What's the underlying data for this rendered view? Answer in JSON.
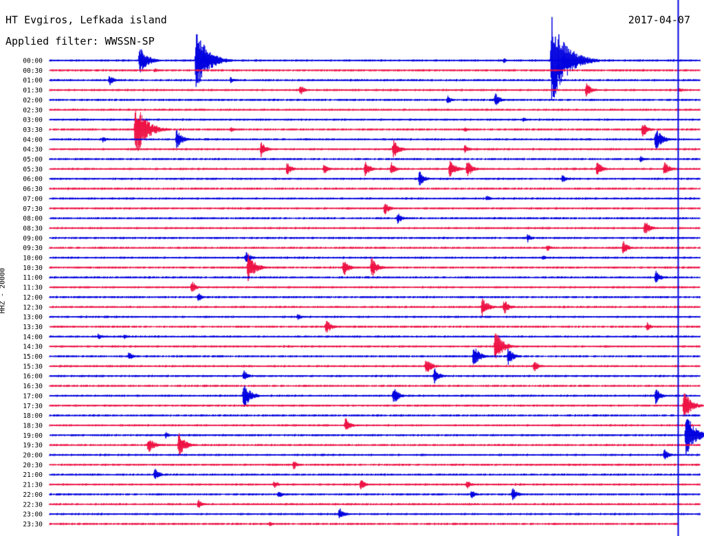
{
  "header": {
    "station": "HT Evgiros, Lefkada island",
    "filter": "Applied filter: WWSSN-SP",
    "date": "2017-04-07",
    "channel": "HHZ - 20000"
  },
  "colors": {
    "blue_trace": "#0000e0",
    "red_trace": "#ee1144",
    "current_time_marker": "#0000dd",
    "background": "#ffffff"
  },
  "chart_data": {
    "type": "line",
    "title": "HT Evgiros, Lefkada island",
    "subtitle": "Applied filter: WWSSN-SP",
    "date": "2017-04-07",
    "ylabel": "HHZ - 20000",
    "xlabel": "",
    "row_minutes": 30,
    "x_range_minutes": [
      0,
      30
    ],
    "row_labels": [
      "00:00",
      "00:30",
      "01:00",
      "01:30",
      "02:00",
      "02:30",
      "03:00",
      "03:30",
      "04:00",
      "04:30",
      "05:00",
      "05:30",
      "06:00",
      "06:30",
      "07:00",
      "07:30",
      "08:00",
      "08:30",
      "09:00",
      "09:30",
      "10:00",
      "10:30",
      "11:00",
      "11:30",
      "12:00",
      "12:30",
      "13:00",
      "13:30",
      "14:00",
      "14:30",
      "15:00",
      "15:30",
      "16:00",
      "16:30",
      "17:00",
      "17:30",
      "18:00",
      "18:30",
      "19:00",
      "19:30",
      "20:00",
      "20:30",
      "21:00",
      "21:30",
      "22:00",
      "22:30",
      "23:00",
      "23:30"
    ],
    "trace_colors": [
      "blue",
      "red"
    ],
    "current_time_minute": 29.0,
    "events": [
      {
        "row": 0,
        "minute": 4.1,
        "amplitude": 30
      },
      {
        "row": 0,
        "minute": 6.7,
        "amplitude": 55
      },
      {
        "row": 0,
        "minute": 23.1,
        "amplitude": 75
      },
      {
        "row": 0,
        "minute": 23.6,
        "amplitude": 12
      },
      {
        "row": 0,
        "minute": 20.9,
        "amplitude": 6
      },
      {
        "row": 1,
        "minute": 4.8,
        "amplitude": 6
      },
      {
        "row": 2,
        "minute": 2.7,
        "amplitude": 12
      },
      {
        "row": 2,
        "minute": 8.3,
        "amplitude": 8
      },
      {
        "row": 3,
        "minute": 11.5,
        "amplitude": 12
      },
      {
        "row": 3,
        "minute": 24.7,
        "amplitude": 16
      },
      {
        "row": 3,
        "minute": 29.0,
        "amplitude": 6
      },
      {
        "row": 4,
        "minute": 18.3,
        "amplitude": 10
      },
      {
        "row": 4,
        "minute": 20.5,
        "amplitude": 14
      },
      {
        "row": 6,
        "minute": 21.8,
        "amplitude": 6
      },
      {
        "row": 7,
        "minute": 3.9,
        "amplitude": 50
      },
      {
        "row": 7,
        "minute": 8.3,
        "amplitude": 7
      },
      {
        "row": 7,
        "minute": 19.1,
        "amplitude": 6
      },
      {
        "row": 7,
        "minute": 27.3,
        "amplitude": 16
      },
      {
        "row": 8,
        "minute": 2.4,
        "amplitude": 8
      },
      {
        "row": 8,
        "minute": 5.8,
        "amplitude": 20
      },
      {
        "row": 8,
        "minute": 27.9,
        "amplitude": 24
      },
      {
        "row": 9,
        "minute": 9.7,
        "amplitude": 16
      },
      {
        "row": 9,
        "minute": 15.8,
        "amplitude": 20
      },
      {
        "row": 9,
        "minute": 19.1,
        "amplitude": 10
      },
      {
        "row": 10,
        "minute": 27.2,
        "amplitude": 8
      },
      {
        "row": 11,
        "minute": 10.9,
        "amplitude": 14
      },
      {
        "row": 11,
        "minute": 12.6,
        "amplitude": 12
      },
      {
        "row": 11,
        "minute": 14.5,
        "amplitude": 16
      },
      {
        "row": 11,
        "minute": 15.7,
        "amplitude": 14
      },
      {
        "row": 11,
        "minute": 18.4,
        "amplitude": 20
      },
      {
        "row": 11,
        "minute": 19.2,
        "amplitude": 18
      },
      {
        "row": 11,
        "minute": 25.2,
        "amplitude": 16
      },
      {
        "row": 11,
        "minute": 28.3,
        "amplitude": 16
      },
      {
        "row": 12,
        "minute": 17.0,
        "amplitude": 16
      },
      {
        "row": 12,
        "minute": 23.6,
        "amplitude": 10
      },
      {
        "row": 14,
        "minute": 20.1,
        "amplitude": 8
      },
      {
        "row": 15,
        "minute": 15.4,
        "amplitude": 14
      },
      {
        "row": 16,
        "minute": 16.0,
        "amplitude": 12
      },
      {
        "row": 17,
        "minute": 27.4,
        "amplitude": 16
      },
      {
        "row": 18,
        "minute": 22.0,
        "amplitude": 10
      },
      {
        "row": 19,
        "minute": 26.4,
        "amplitude": 16
      },
      {
        "row": 19,
        "minute": 22.9,
        "amplitude": 8
      },
      {
        "row": 20,
        "minute": 9.0,
        "amplitude": 14
      },
      {
        "row": 20,
        "minute": 22.7,
        "amplitude": 6
      },
      {
        "row": 21,
        "minute": 9.1,
        "amplitude": 28
      },
      {
        "row": 21,
        "minute": 13.5,
        "amplitude": 18
      },
      {
        "row": 21,
        "minute": 14.8,
        "amplitude": 20
      },
      {
        "row": 22,
        "minute": 27.9,
        "amplitude": 14
      },
      {
        "row": 23,
        "minute": 6.5,
        "amplitude": 14
      },
      {
        "row": 24,
        "minute": 6.8,
        "amplitude": 10
      },
      {
        "row": 25,
        "minute": 19.9,
        "amplitude": 20
      },
      {
        "row": 25,
        "minute": 20.9,
        "amplitude": 16
      },
      {
        "row": 26,
        "minute": 11.4,
        "amplitude": 8
      },
      {
        "row": 27,
        "minute": 12.7,
        "amplitude": 16
      },
      {
        "row": 27,
        "minute": 27.5,
        "amplitude": 10
      },
      {
        "row": 28,
        "minute": 2.2,
        "amplitude": 8
      },
      {
        "row": 28,
        "minute": 3.4,
        "amplitude": 6
      },
      {
        "row": 29,
        "minute": 20.5,
        "amplitude": 30
      },
      {
        "row": 30,
        "minute": 3.6,
        "amplitude": 10
      },
      {
        "row": 30,
        "minute": 19.5,
        "amplitude": 22
      },
      {
        "row": 30,
        "minute": 21.1,
        "amplitude": 18
      },
      {
        "row": 31,
        "minute": 17.3,
        "amplitude": 18
      },
      {
        "row": 31,
        "minute": 22.3,
        "amplitude": 12
      },
      {
        "row": 32,
        "minute": 8.9,
        "amplitude": 12
      },
      {
        "row": 32,
        "minute": 17.7,
        "amplitude": 16
      },
      {
        "row": 34,
        "minute": 8.9,
        "amplitude": 26
      },
      {
        "row": 34,
        "minute": 15.8,
        "amplitude": 18
      },
      {
        "row": 34,
        "minute": 27.9,
        "amplitude": 16
      },
      {
        "row": 35,
        "minute": 29.2,
        "amplitude": 30
      },
      {
        "row": 37,
        "minute": 13.6,
        "amplitude": 16
      },
      {
        "row": 38,
        "minute": 5.3,
        "amplitude": 8
      },
      {
        "row": 38,
        "minute": 29.3,
        "amplitude": 40
      },
      {
        "row": 39,
        "minute": 4.5,
        "amplitude": 18
      },
      {
        "row": 39,
        "minute": 5.9,
        "amplitude": 24
      },
      {
        "row": 40,
        "minute": 28.3,
        "amplitude": 12
      },
      {
        "row": 41,
        "minute": 11.2,
        "amplitude": 10
      },
      {
        "row": 42,
        "minute": 4.8,
        "amplitude": 14
      },
      {
        "row": 43,
        "minute": 10.3,
        "amplitude": 10
      },
      {
        "row": 43,
        "minute": 14.3,
        "amplitude": 12
      },
      {
        "row": 43,
        "minute": 19.2,
        "amplitude": 10
      },
      {
        "row": 44,
        "minute": 10.5,
        "amplitude": 10
      },
      {
        "row": 44,
        "minute": 19.4,
        "amplitude": 10
      },
      {
        "row": 44,
        "minute": 21.3,
        "amplitude": 14
      },
      {
        "row": 45,
        "minute": 6.8,
        "amplitude": 10
      },
      {
        "row": 46,
        "minute": 13.3,
        "amplitude": 14
      },
      {
        "row": 47,
        "minute": 10.1,
        "amplitude": 6
      }
    ]
  }
}
